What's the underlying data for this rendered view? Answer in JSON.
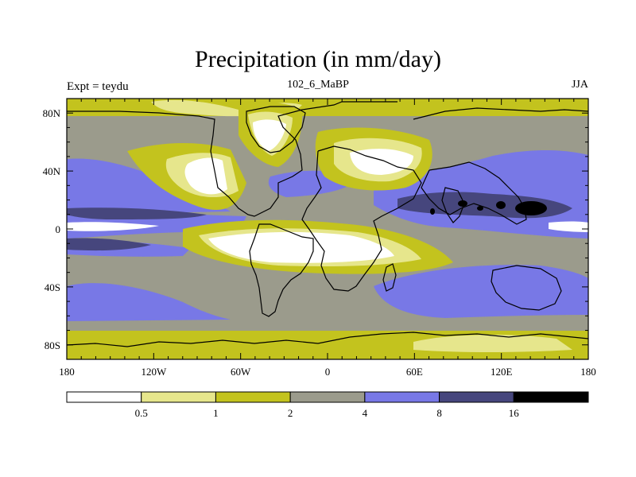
{
  "header": {
    "title": "Precipitation (in mm/day)",
    "left_string": "Expt = teydu",
    "center_string": "102_6_MaBP",
    "right_string": "JJA"
  },
  "chart_data": {
    "type": "contour-map",
    "title": "Precipitation (in mm/day)",
    "units": "mm/day",
    "x_ticks": [
      {
        "value": -180,
        "label": "180"
      },
      {
        "value": -120,
        "label": "120W"
      },
      {
        "value": -60,
        "label": "60W"
      },
      {
        "value": 0,
        "label": "0"
      },
      {
        "value": 60,
        "label": "60E"
      },
      {
        "value": 120,
        "label": "120E"
      },
      {
        "value": 180,
        "label": "180"
      }
    ],
    "y_ticks": [
      {
        "value": 80,
        "label": "80N"
      },
      {
        "value": 40,
        "label": "40N"
      },
      {
        "value": 0,
        "label": "0"
      },
      {
        "value": -40,
        "label": "40S"
      },
      {
        "value": -80,
        "label": "80S"
      }
    ],
    "xlim": [
      -180,
      180
    ],
    "ylim": [
      -90,
      90
    ],
    "colorbar": {
      "levels": [
        "0.5",
        "1",
        "2",
        "4",
        "8",
        "16"
      ],
      "colors": [
        "#ffffff",
        "#e6e68c",
        "#c3c31e",
        "#9b9b8c",
        "#7878e6",
        "#46467d",
        "#000000"
      ]
    }
  }
}
